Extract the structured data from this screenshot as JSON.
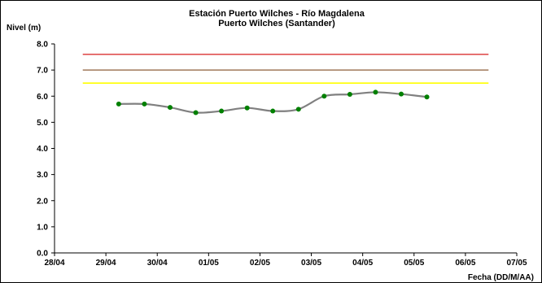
{
  "chart_data": {
    "type": "line",
    "title": "Estación Puerto Wilches - Río Magdalena",
    "subtitle": "Puerto Wilches (Santander)",
    "ylabel": "Nivel (m)",
    "xlabel": "Fecha (DD/M/AA)",
    "ylim": [
      0,
      8
    ],
    "yticks": [
      "0.0",
      "1.0",
      "2.0",
      "3.0",
      "4.0",
      "5.0",
      "6.0",
      "7.0",
      "8.0"
    ],
    "xticks": [
      "28/04",
      "29/04",
      "30/04",
      "01/05",
      "02/05",
      "03/05",
      "04/05",
      "05/05",
      "06/05",
      "07/05"
    ],
    "grid": false,
    "legend": "none",
    "series": [
      {
        "kind": "observed",
        "color": "#808080",
        "marker_color": "#008000",
        "x": [
          1.25,
          1.75,
          2.25,
          2.75,
          3.25,
          3.75,
          4.25,
          4.75,
          5.25,
          5.75,
          6.25,
          6.75,
          7.25
        ],
        "y": [
          5.7,
          5.7,
          5.57,
          5.37,
          5.43,
          5.55,
          5.43,
          5.5,
          6.0,
          6.07,
          6.15,
          6.08,
          5.97
        ]
      },
      {
        "kind": "threshold",
        "color": "#e05050",
        "y": 7.6,
        "x": [
          0.55,
          8.45
        ]
      },
      {
        "kind": "threshold",
        "color": "#a0785a",
        "y": 7.0,
        "x": [
          0.55,
          8.45
        ]
      },
      {
        "kind": "threshold",
        "color": "#ffff00",
        "y": 6.5,
        "x": [
          0.55,
          8.45
        ]
      }
    ]
  }
}
